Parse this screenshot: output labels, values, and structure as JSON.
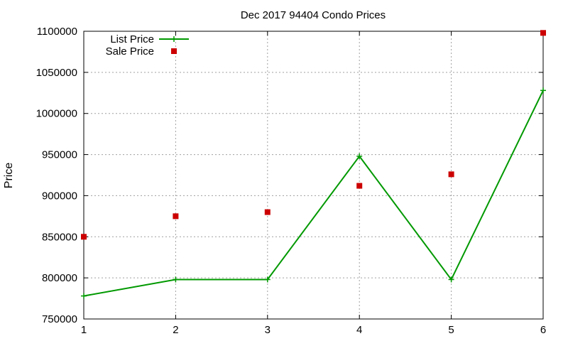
{
  "chart_data": {
    "type": "line",
    "title": "Dec 2017 94404 Condo Prices",
    "xlabel": "",
    "ylabel": "Price",
    "x": [
      1,
      2,
      3,
      4,
      5,
      6
    ],
    "xlim": [
      1,
      6
    ],
    "ylim": [
      750000,
      1100000
    ],
    "xticks": [
      "1",
      "2",
      "3",
      "4",
      "5",
      "6"
    ],
    "yticks": [
      "750000",
      "800000",
      "850000",
      "900000",
      "950000",
      "1000000",
      "1050000",
      "1100000"
    ],
    "grid": true,
    "legend_position": "top-left",
    "series": [
      {
        "name": "List Price",
        "style": "line-with-plus-markers",
        "color": "#009900",
        "values": [
          778000,
          798000,
          798000,
          948000,
          798000,
          1028000
        ]
      },
      {
        "name": "Sale Price",
        "style": "square-points",
        "color": "#cc0000",
        "values": [
          850000,
          875000,
          880000,
          912000,
          926000,
          1098000
        ]
      }
    ]
  }
}
